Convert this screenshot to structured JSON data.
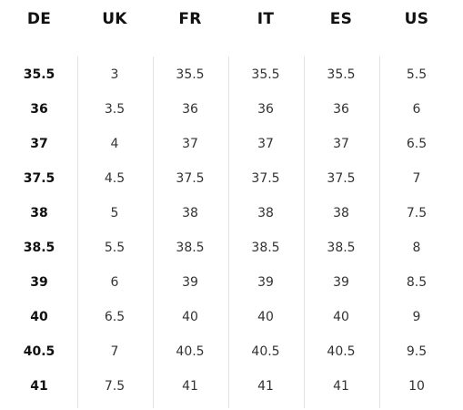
{
  "size_chart": {
    "columns": [
      {
        "header": "DE",
        "values": [
          "35.5",
          "36",
          "37",
          "37.5",
          "38",
          "38.5",
          "39",
          "40",
          "40.5",
          "41"
        ]
      },
      {
        "header": "UK",
        "values": [
          "3",
          "3.5",
          "4",
          "4.5",
          "5",
          "5.5",
          "6",
          "6.5",
          "7",
          "7.5"
        ]
      },
      {
        "header": "FR",
        "values": [
          "35.5",
          "36",
          "37",
          "37.5",
          "38",
          "38.5",
          "39",
          "40",
          "40.5",
          "41"
        ]
      },
      {
        "header": "IT",
        "values": [
          "35.5",
          "36",
          "37",
          "37.5",
          "38",
          "38.5",
          "39",
          "40",
          "40.5",
          "41"
        ]
      },
      {
        "header": "ES",
        "values": [
          "35.5",
          "36",
          "37",
          "37.5",
          "38",
          "38.5",
          "39",
          "40",
          "40.5",
          "41"
        ]
      },
      {
        "header": "US",
        "values": [
          "5.5",
          "6",
          "6.5",
          "7",
          "7.5",
          "8",
          "8.5",
          "9",
          "9.5",
          "10"
        ]
      }
    ]
  }
}
